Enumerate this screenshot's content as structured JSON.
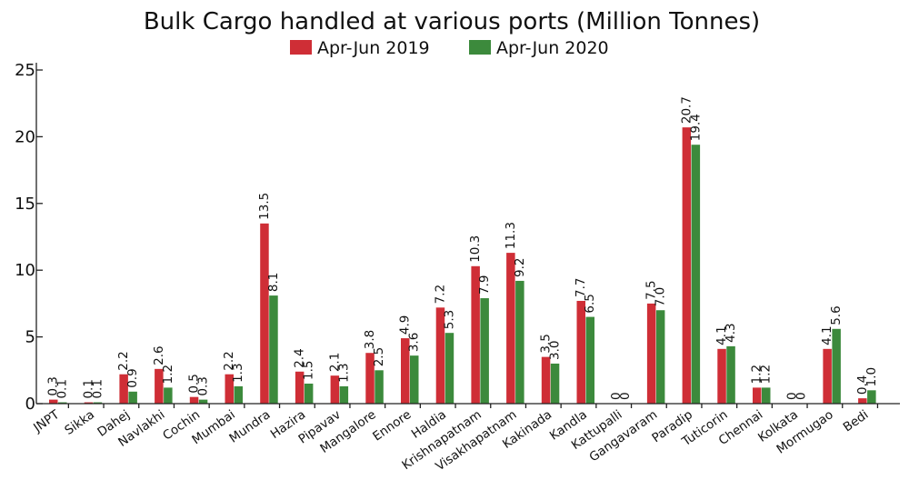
{
  "chart_data": {
    "type": "bar",
    "title": "Bulk Cargo handled at various ports (Million Tonnes)",
    "xlabel": "",
    "ylabel": "",
    "ylim": [
      0,
      25
    ],
    "yticks": [
      0,
      5,
      10,
      15,
      20,
      25
    ],
    "grid": false,
    "legend": "top-center",
    "categories": [
      "JNPT",
      "Sikka",
      "Dahej",
      "Navlakhi",
      "Cochin",
      "Mumbai",
      "Mundra",
      "Hazira",
      "Pipavav",
      "Mangalore",
      "Ennore",
      "Haldia",
      "Krishnapatnam",
      "Visakhapatnam",
      "Kakinada",
      "Kandla",
      "Kattupalli",
      "Gangavaram",
      "Paradip",
      "Tuticorin",
      "Chennai",
      "Kolkata",
      "Mormugao",
      "Bedi"
    ],
    "series": [
      {
        "name": "Apr-Jun 2019",
        "color": "#cf2e36",
        "values": [
          0.3,
          0.1,
          2.2,
          2.6,
          0.5,
          2.2,
          13.5,
          2.4,
          2.1,
          3.8,
          4.9,
          7.2,
          10.3,
          11.3,
          3.5,
          7.7,
          0,
          7.5,
          20.7,
          4.1,
          1.2,
          0,
          4.1,
          0.4
        ],
        "labels": [
          "0.3",
          "0.1",
          "2.2",
          "2.6",
          "0.5",
          "2.2",
          "13.5",
          "2.4",
          "2.1",
          "3.8",
          "4.9",
          "7.2",
          "10.3",
          "11.3",
          "3.5",
          "7.7",
          "0",
          "7.5",
          "20.7",
          "4.1",
          "1.2",
          "0",
          "4.1",
          "0.4"
        ]
      },
      {
        "name": "Apr-Jun 2020",
        "color": "#3c8a3c",
        "values": [
          0.1,
          0.1,
          0.9,
          1.2,
          0.3,
          1.3,
          8.1,
          1.5,
          1.3,
          2.5,
          3.6,
          5.3,
          7.9,
          9.2,
          3.0,
          6.5,
          0,
          7.0,
          19.4,
          4.3,
          1.2,
          0,
          5.6,
          1.0
        ],
        "labels": [
          "0.1",
          "0.1",
          "0.9",
          "1.2",
          "0.3",
          "1.3",
          "8.1",
          "1.5",
          "1.3",
          "2.5",
          "3.6",
          "5.3",
          "7.9",
          "9.2",
          "3.0",
          "6.5",
          "0",
          "7.0",
          "19.4",
          "4.3",
          "1.2",
          "0",
          "5.6",
          "1.0"
        ]
      }
    ]
  }
}
